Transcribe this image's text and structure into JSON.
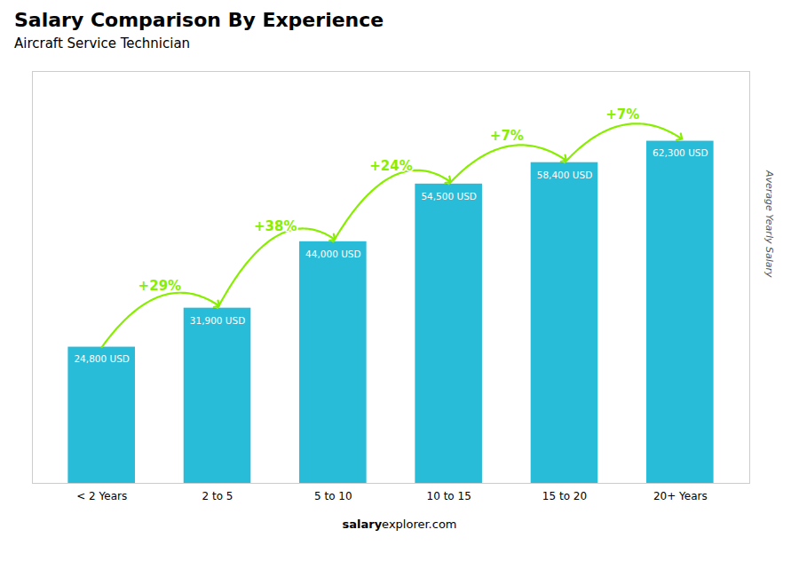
{
  "chart_data": {
    "type": "bar",
    "title": "Salary Comparison By Experience",
    "subtitle": "Aircraft Service Technician",
    "ylabel": "Average Yearly Salary",
    "categories": [
      "< 2 Years",
      "2 to 5",
      "5 to 10",
      "10 to 15",
      "15 to 20",
      "20+ Years"
    ],
    "values": [
      24800,
      31900,
      44000,
      54500,
      58400,
      62300
    ],
    "value_labels": [
      "24,800 USD",
      "31,900 USD",
      "44,000 USD",
      "54,500 USD",
      "58,400 USD",
      "62,300 USD"
    ],
    "data_labels": true,
    "color": "#29bcd8",
    "ylim": [
      0,
      75000
    ],
    "tick_labels": "x",
    "grid": false,
    "annotations": [
      {
        "text": "+29%",
        "from": "< 2 Years",
        "to": "2 to 5",
        "color": "#88ee00"
      },
      {
        "text": "+38%",
        "from": "2 to 5",
        "to": "5 to 10",
        "color": "#88ee00"
      },
      {
        "text": "+24%",
        "from": "5 to 10",
        "to": "10 to 15",
        "color": "#88ee00"
      },
      {
        "text": "+7%",
        "from": "10 to 15",
        "to": "15 to 20",
        "color": "#88ee00"
      },
      {
        "text": "+7%",
        "from": "15 to 20",
        "to": "20+ Years",
        "color": "#88ee00"
      }
    ],
    "footer": [
      "salary",
      "explorer.com"
    ]
  }
}
